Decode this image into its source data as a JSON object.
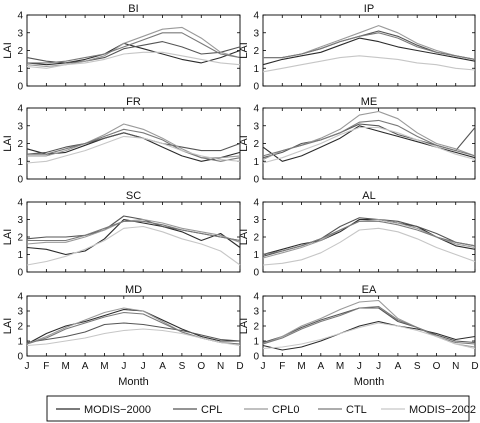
{
  "chart_data": {
    "type": "line",
    "months": [
      "J",
      "F",
      "M",
      "A",
      "M",
      "J",
      "J",
      "A",
      "S",
      "O",
      "N",
      "D"
    ],
    "xlabel": "Month",
    "ylabel": "LAI",
    "ylim": [
      0,
      4
    ],
    "yticks": [
      0,
      1,
      2,
      3,
      4
    ],
    "legend": {
      "placement": "bottom",
      "entries": [
        "MODIS−2000",
        "CPL",
        "CPL0",
        "CTL",
        "MODIS−2002"
      ]
    },
    "series_colors": [
      "#2b2b2b",
      "#555555",
      "#9a9a9a",
      "#7a7a7a",
      "#c6c6c6"
    ],
    "panels": [
      {
        "title": "BI",
        "series": [
          {
            "values": [
              1.3,
              1.2,
              1.3,
              1.5,
              1.8,
              2.4,
              2.1,
              1.8,
              1.5,
              1.3,
              1.6,
              2.0
            ]
          },
          {
            "values": [
              1.6,
              1.4,
              1.3,
              1.4,
              1.6,
              2.1,
              2.3,
              2.5,
              2.2,
              1.8,
              1.9,
              2.2
            ]
          },
          {
            "values": [
              1.2,
              1.1,
              1.2,
              1.4,
              1.7,
              2.4,
              2.8,
              3.2,
              3.3,
              2.7,
              1.9,
              1.6
            ]
          },
          {
            "values": [
              1.3,
              1.3,
              1.4,
              1.6,
              1.8,
              2.2,
              2.6,
              3.0,
              3.0,
              2.4,
              1.8,
              1.6
            ]
          },
          {
            "values": [
              1.1,
              1.0,
              1.2,
              1.3,
              1.5,
              1.8,
              1.9,
              1.9,
              1.7,
              1.5,
              1.3,
              1.2
            ]
          }
        ]
      },
      {
        "title": "IP",
        "series": [
          {
            "values": [
              1.2,
              1.5,
              1.7,
              1.9,
              2.3,
              2.7,
              2.5,
              2.2,
              2.0,
              1.8,
              1.6,
              1.4
            ]
          },
          {
            "values": [
              1.6,
              1.6,
              1.8,
              2.1,
              2.5,
              2.8,
              3.1,
              2.8,
              2.3,
              1.9,
              1.7,
              1.5
            ]
          },
          {
            "values": [
              1.6,
              1.6,
              1.8,
              2.2,
              2.6,
              3.0,
              3.4,
              3.0,
              2.4,
              2.0,
              1.7,
              1.5
            ]
          },
          {
            "values": [
              1.6,
              1.6,
              1.8,
              2.1,
              2.5,
              2.8,
              3.0,
              2.7,
              2.2,
              1.9,
              1.7,
              1.5
            ]
          },
          {
            "values": [
              0.8,
              1.0,
              1.2,
              1.4,
              1.6,
              1.7,
              1.6,
              1.5,
              1.3,
              1.2,
              1.0,
              0.9
            ]
          }
        ]
      },
      {
        "title": "FR",
        "series": [
          {
            "values": [
              1.7,
              1.4,
              1.5,
              1.9,
              2.3,
              2.6,
              2.3,
              1.8,
              1.3,
              1.0,
              1.2,
              1.5
            ]
          },
          {
            "values": [
              1.4,
              1.5,
              1.8,
              2.0,
              2.3,
              2.6,
              2.3,
              2.0,
              1.8,
              1.6,
              1.6,
              2.0
            ]
          },
          {
            "values": [
              1.3,
              1.3,
              1.6,
              2.0,
              2.5,
              3.1,
              2.8,
              2.3,
              1.7,
              1.2,
              1.2,
              1.3
            ]
          },
          {
            "values": [
              1.4,
              1.4,
              1.7,
              2.0,
              2.4,
              2.8,
              2.6,
              2.2,
              1.6,
              1.2,
              1.0,
              1.2
            ]
          },
          {
            "values": [
              0.9,
              1.0,
              1.3,
              1.6,
              2.0,
              2.4,
              2.3,
              2.0,
              1.6,
              1.3,
              1.1,
              1.0
            ]
          }
        ]
      },
      {
        "title": "ME",
        "series": [
          {
            "values": [
              1.8,
              1.0,
              1.3,
              1.8,
              2.3,
              3.0,
              2.7,
              2.4,
              2.1,
              1.8,
              1.5,
              1.2
            ]
          },
          {
            "values": [
              1.2,
              1.5,
              2.0,
              2.2,
              2.6,
              3.1,
              3.0,
              2.5,
              2.2,
              1.9,
              1.6,
              2.9
            ]
          },
          {
            "values": [
              1.1,
              1.6,
              1.9,
              2.3,
              2.8,
              3.6,
              3.8,
              3.4,
              2.6,
              2.0,
              1.7,
              1.3
            ]
          },
          {
            "values": [
              1.3,
              1.6,
              1.9,
              2.2,
              2.6,
              3.2,
              3.3,
              3.0,
              2.4,
              1.9,
              1.6,
              1.3
            ]
          },
          {
            "values": [
              0.9,
              1.2,
              1.6,
              2.0,
              2.5,
              2.9,
              2.9,
              2.6,
              2.2,
              1.8,
              1.4,
              1.1
            ]
          }
        ]
      },
      {
        "title": "SC",
        "series": [
          {
            "values": [
              1.4,
              1.3,
              1.0,
              1.2,
              1.9,
              3.0,
              2.8,
              2.6,
              2.3,
              1.8,
              2.2,
              1.4
            ]
          },
          {
            "values": [
              1.9,
              2.0,
              2.0,
              2.1,
              2.4,
              3.2,
              3.0,
              2.6,
              2.4,
              2.2,
              2.0,
              1.8
            ]
          },
          {
            "values": [
              1.6,
              1.7,
              1.7,
              2.0,
              2.4,
              2.9,
              3.0,
              2.8,
              2.5,
              2.3,
              2.1,
              1.7
            ]
          },
          {
            "values": [
              1.8,
              1.8,
              1.8,
              2.1,
              2.5,
              2.9,
              2.9,
              2.7,
              2.4,
              2.2,
              2.0,
              1.8
            ]
          },
          {
            "values": [
              0.4,
              0.6,
              0.9,
              1.3,
              1.8,
              2.5,
              2.6,
              2.3,
              1.9,
              1.6,
              1.2,
              0.4
            ]
          }
        ]
      },
      {
        "title": "AL",
        "series": [
          {
            "values": [
              1.0,
              1.3,
              1.6,
              1.8,
              2.3,
              3.0,
              3.0,
              2.8,
              2.6,
              2.0,
              1.5,
              1.3
            ]
          },
          {
            "values": [
              0.9,
              1.2,
              1.5,
              1.9,
              2.6,
              3.1,
              3.0,
              2.9,
              2.6,
              2.2,
              1.7,
              1.5
            ]
          },
          {
            "values": [
              0.8,
              1.1,
              1.4,
              1.8,
              2.4,
              2.9,
              3.0,
              2.8,
              2.5,
              2.0,
              1.6,
              1.4
            ]
          },
          {
            "values": [
              1.0,
              1.2,
              1.5,
              1.9,
              2.4,
              2.9,
              2.9,
              2.7,
              2.4,
              2.0,
              1.7,
              1.5
            ]
          },
          {
            "values": [
              0.4,
              0.5,
              0.7,
              1.1,
              1.7,
              2.4,
              2.5,
              2.3,
              1.9,
              1.4,
              1.0,
              0.6
            ]
          }
        ]
      },
      {
        "title": "MD",
        "series": [
          {
            "values": [
              0.8,
              1.5,
              2.0,
              2.3,
              2.7,
              3.1,
              3.0,
              2.4,
              1.8,
              1.3,
              1.0,
              1.0
            ]
          },
          {
            "values": [
              0.9,
              1.1,
              1.3,
              1.6,
              2.1,
              2.2,
              2.1,
              1.9,
              1.7,
              1.4,
              1.1,
              1.0
            ]
          },
          {
            "values": [
              0.8,
              1.3,
              1.9,
              2.4,
              2.9,
              3.2,
              3.0,
              2.3,
              1.6,
              1.2,
              0.9,
              0.8
            ]
          },
          {
            "values": [
              0.8,
              1.2,
              1.8,
              2.2,
              2.6,
              2.9,
              2.8,
              2.2,
              1.6,
              1.2,
              0.9,
              0.8
            ]
          },
          {
            "values": [
              0.7,
              0.8,
              1.0,
              1.2,
              1.5,
              1.7,
              1.8,
              1.7,
              1.5,
              1.2,
              0.9,
              0.7
            ]
          }
        ]
      },
      {
        "title": "EA",
        "series": [
          {
            "values": [
              0.7,
              0.4,
              0.6,
              1.0,
              1.5,
              2.0,
              2.3,
              2.0,
              1.8,
              1.5,
              1.1,
              1.3
            ]
          },
          {
            "values": [
              0.9,
              1.3,
              1.9,
              2.4,
              2.8,
              3.2,
              3.2,
              2.3,
              1.9,
              1.4,
              1.0,
              0.9
            ]
          },
          {
            "values": [
              0.8,
              1.3,
              2.0,
              2.5,
              3.1,
              3.6,
              3.7,
              2.5,
              1.9,
              1.3,
              0.8,
              0.6
            ]
          },
          {
            "values": [
              0.8,
              1.2,
              1.8,
              2.3,
              2.7,
              3.2,
              3.3,
              2.4,
              1.9,
              1.3,
              0.9,
              0.8
            ]
          },
          {
            "values": [
              0.5,
              0.6,
              0.8,
              1.1,
              1.5,
              1.9,
              2.2,
              2.0,
              1.7,
              1.3,
              0.8,
              0.5
            ]
          }
        ]
      }
    ]
  }
}
